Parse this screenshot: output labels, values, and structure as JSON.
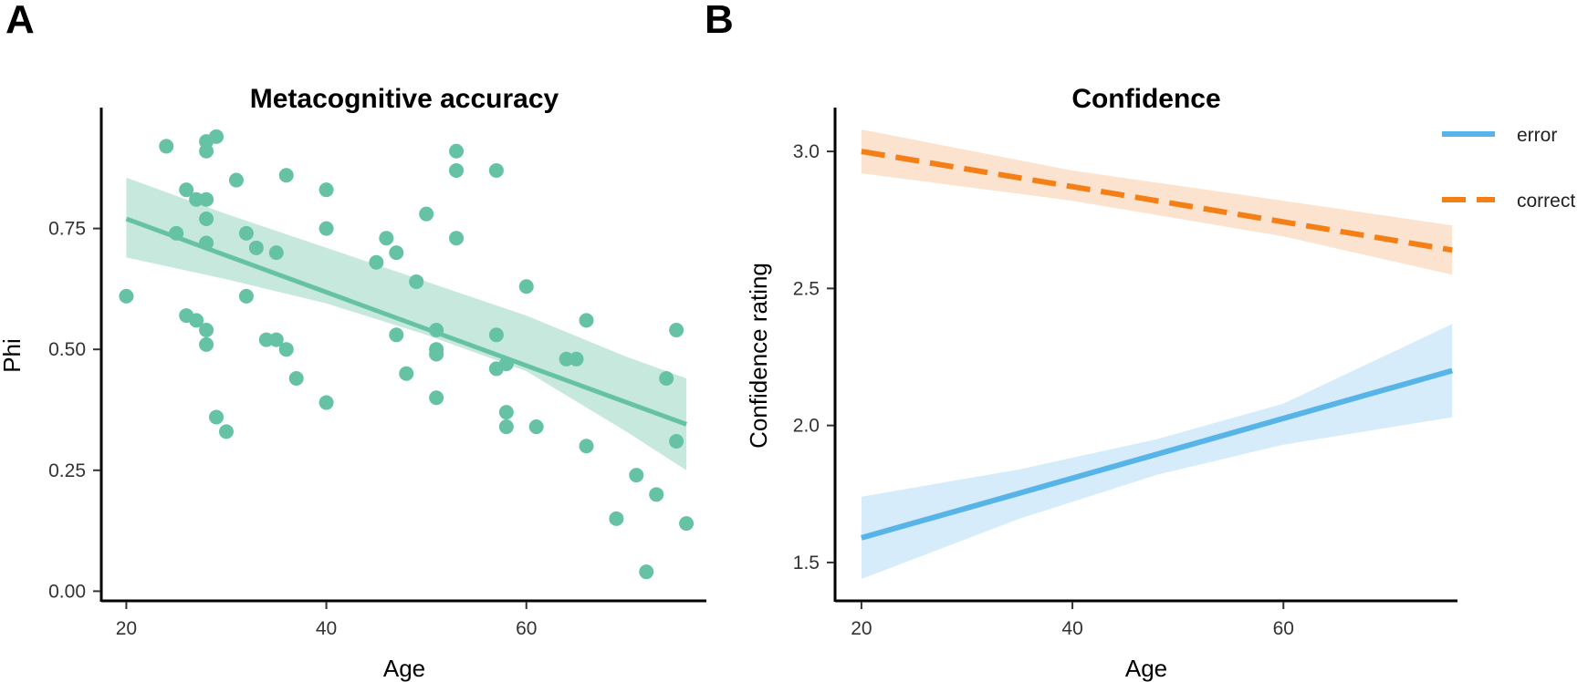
{
  "chart_data": [
    {
      "panel": "A",
      "type": "scatter",
      "title": "Metacognitive accuracy",
      "xlabel": "Age",
      "ylabel": "Phi",
      "xlim": [
        17.5,
        78
      ],
      "ylim": [
        -0.02,
        1.0
      ],
      "x_ticks": [
        20,
        40,
        60
      ],
      "x_tick_labels": [
        "20",
        "40",
        "60"
      ],
      "y_ticks": [
        0,
        0.25,
        0.5,
        0.75
      ],
      "y_tick_labels": [
        "0.00",
        "0.25",
        "0.50",
        "0.75"
      ],
      "color": "#66c2a5",
      "points": [
        {
          "x": 20,
          "y": 0.61
        },
        {
          "x": 24,
          "y": 0.92
        },
        {
          "x": 25,
          "y": 0.74
        },
        {
          "x": 26,
          "y": 0.83
        },
        {
          "x": 26,
          "y": 0.57
        },
        {
          "x": 27,
          "y": 0.81
        },
        {
          "x": 27,
          "y": 0.56
        },
        {
          "x": 28,
          "y": 0.93
        },
        {
          "x": 28,
          "y": 0.91
        },
        {
          "x": 28,
          "y": 0.81
        },
        {
          "x": 28,
          "y": 0.77
        },
        {
          "x": 28,
          "y": 0.72
        },
        {
          "x": 28,
          "y": 0.54
        },
        {
          "x": 28,
          "y": 0.51
        },
        {
          "x": 29,
          "y": 0.94
        },
        {
          "x": 29,
          "y": 0.36
        },
        {
          "x": 30,
          "y": 0.33
        },
        {
          "x": 31,
          "y": 0.85
        },
        {
          "x": 32,
          "y": 0.74
        },
        {
          "x": 32,
          "y": 0.61
        },
        {
          "x": 33,
          "y": 0.71
        },
        {
          "x": 34,
          "y": 0.52
        },
        {
          "x": 35,
          "y": 0.7
        },
        {
          "x": 35,
          "y": 0.52
        },
        {
          "x": 36,
          "y": 0.86
        },
        {
          "x": 36,
          "y": 0.5
        },
        {
          "x": 37,
          "y": 0.44
        },
        {
          "x": 40,
          "y": 0.83
        },
        {
          "x": 40,
          "y": 0.75
        },
        {
          "x": 40,
          "y": 0.39
        },
        {
          "x": 45,
          "y": 0.68
        },
        {
          "x": 46,
          "y": 0.73
        },
        {
          "x": 47,
          "y": 0.7
        },
        {
          "x": 47,
          "y": 0.53
        },
        {
          "x": 48,
          "y": 0.45
        },
        {
          "x": 49,
          "y": 0.64
        },
        {
          "x": 50,
          "y": 0.78
        },
        {
          "x": 51,
          "y": 0.54
        },
        {
          "x": 51,
          "y": 0.5
        },
        {
          "x": 51,
          "y": 0.49
        },
        {
          "x": 51,
          "y": 0.4
        },
        {
          "x": 53,
          "y": 0.91
        },
        {
          "x": 53,
          "y": 0.87
        },
        {
          "x": 53,
          "y": 0.73
        },
        {
          "x": 57,
          "y": 0.87
        },
        {
          "x": 57,
          "y": 0.53
        },
        {
          "x": 57,
          "y": 0.46
        },
        {
          "x": 58,
          "y": 0.47
        },
        {
          "x": 58,
          "y": 0.37
        },
        {
          "x": 58,
          "y": 0.34
        },
        {
          "x": 60,
          "y": 0.63
        },
        {
          "x": 61,
          "y": 0.34
        },
        {
          "x": 64,
          "y": 0.48
        },
        {
          "x": 65,
          "y": 0.48
        },
        {
          "x": 66,
          "y": 0.56
        },
        {
          "x": 66,
          "y": 0.3
        },
        {
          "x": 69,
          "y": 0.15
        },
        {
          "x": 71,
          "y": 0.24
        },
        {
          "x": 72,
          "y": 0.04
        },
        {
          "x": 73,
          "y": 0.2
        },
        {
          "x": 74,
          "y": 0.44
        },
        {
          "x": 75,
          "y": 0.54
        },
        {
          "x": 75,
          "y": 0.31
        },
        {
          "x": 76,
          "y": 0.14
        }
      ],
      "fit": {
        "x": [
          20,
          76
        ],
        "y": [
          0.77,
          0.345
        ]
      },
      "ci": {
        "x": [
          20,
          30,
          40,
          50,
          60,
          70,
          76
        ],
        "upper": [
          0.855,
          0.78,
          0.71,
          0.64,
          0.57,
          0.485,
          0.44
        ],
        "lower": [
          0.69,
          0.645,
          0.595,
          0.53,
          0.455,
          0.33,
          0.25
        ]
      }
    },
    {
      "panel": "B",
      "type": "line",
      "title": "Confidence",
      "xlabel": "Age",
      "ylabel": "Confidence rating",
      "xlim": [
        17.5,
        76.5
      ],
      "ylim": [
        1.36,
        3.16
      ],
      "x_ticks": [
        20,
        40,
        60
      ],
      "x_tick_labels": [
        "20",
        "40",
        "60"
      ],
      "y_ticks": [
        1.5,
        2.0,
        2.5,
        3.0
      ],
      "y_tick_labels": [
        "1.5",
        "2.0",
        "2.5",
        "3.0"
      ],
      "series": [
        {
          "name": "error",
          "color": "#56b4e9",
          "fill": "#d6ecfa",
          "dashed": false,
          "x": [
            20,
            76
          ],
          "y": [
            1.59,
            2.2
          ],
          "ci_x": [
            20,
            35,
            48,
            60,
            76
          ],
          "ci_upper": [
            1.74,
            1.84,
            1.95,
            2.08,
            2.37
          ],
          "ci_lower": [
            1.44,
            1.66,
            1.82,
            1.93,
            2.03
          ]
        },
        {
          "name": "correct",
          "color": "#f57f17",
          "fill": "#fbe3cf",
          "dashed": true,
          "x": [
            20,
            76
          ],
          "y": [
            3.0,
            2.64
          ],
          "ci_x": [
            20,
            40,
            60,
            76
          ],
          "ci_upper": [
            3.08,
            2.93,
            2.82,
            2.73
          ],
          "ci_lower": [
            2.92,
            2.82,
            2.69,
            2.55
          ]
        }
      ],
      "legend": [
        "error",
        "correct"
      ],
      "legend_position": "top-right"
    }
  ],
  "panel_labels": [
    "A",
    "B"
  ]
}
